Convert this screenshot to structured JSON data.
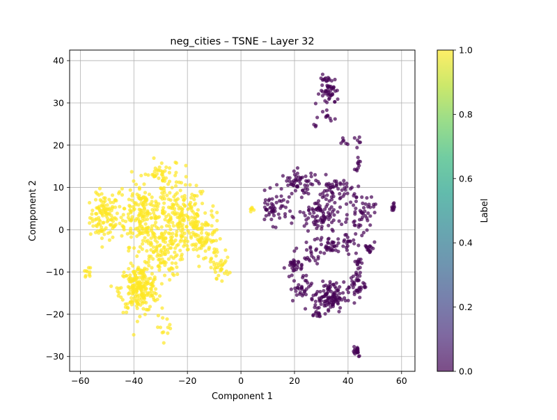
{
  "chart_data": {
    "type": "scatter",
    "title": "neg_cities – TSNE – Layer 32",
    "xlabel": "Component 1",
    "ylabel": "Component 2",
    "xlim": [
      -64,
      65
    ],
    "ylim": [
      -33.5,
      42.5
    ],
    "xticks": [
      -60,
      -40,
      -20,
      0,
      20,
      40,
      60
    ],
    "yticks": [
      -30,
      -20,
      -10,
      0,
      10,
      20,
      30,
      40
    ],
    "xtick_labels": [
      "−60",
      "−40",
      "−20",
      "0",
      "20",
      "40",
      "60"
    ],
    "ytick_labels": [
      "−30",
      "−20",
      "−10",
      "0",
      "10",
      "20",
      "30",
      "40"
    ],
    "grid": true,
    "point_alpha": 0.7,
    "colormap": "viridis",
    "series": [
      {
        "label_value": 1.0,
        "color": "#fde725",
        "clusters": [
          {
            "center": [
              -51,
              3
            ],
            "spread": [
              4.5,
              4.5
            ],
            "count": 110
          },
          {
            "center": [
              -37,
              4
            ],
            "spread": [
              8,
              6.5
            ],
            "count": 200
          },
          {
            "center": [
              -22,
              3
            ],
            "spread": [
              8,
              6.5
            ],
            "count": 170
          },
          {
            "center": [
              -38,
              -14
            ],
            "spread": [
              6,
              4.5
            ],
            "count": 220
          },
          {
            "center": [
              -30,
              -5
            ],
            "spread": [
              7,
              5
            ],
            "count": 120
          },
          {
            "center": [
              -14,
              -2
            ],
            "spread": [
              6,
              5
            ],
            "count": 100
          },
          {
            "center": [
              -8,
              -9
            ],
            "spread": [
              3,
              2
            ],
            "count": 30
          },
          {
            "center": [
              -57,
              -10
            ],
            "spread": [
              1.2,
              1
            ],
            "count": 10
          },
          {
            "center": [
              -30,
              13
            ],
            "spread": [
              6,
              3
            ],
            "count": 40
          },
          {
            "center": [
              -28,
              -23
            ],
            "spread": [
              3,
              2
            ],
            "count": 12
          },
          {
            "center": [
              4,
              4.5
            ],
            "spread": [
              0.8,
              0.8
            ],
            "count": 6
          }
        ]
      },
      {
        "label_value": 0.0,
        "color": "#440154",
        "clusters": [
          {
            "center": [
              33,
              33
            ],
            "spread": [
              3,
              3
            ],
            "count": 55
          },
          {
            "center": [
              33,
              26.5
            ],
            "spread": [
              2,
              0.6
            ],
            "count": 8
          },
          {
            "center": [
              28,
              24.5
            ],
            "spread": [
              0.6,
              0.5
            ],
            "count": 3
          },
          {
            "center": [
              38,
              21
            ],
            "spread": [
              1.2,
              1.2
            ],
            "count": 6
          },
          {
            "center": [
              43.5,
              21
            ],
            "spread": [
              1,
              1.2
            ],
            "count": 6
          },
          {
            "center": [
              44,
              15.5
            ],
            "spread": [
              1.2,
              1.2
            ],
            "count": 10
          },
          {
            "center": [
              22,
              11
            ],
            "spread": [
              6,
              2.5
            ],
            "count": 60
          },
          {
            "center": [
              35,
              9
            ],
            "spread": [
              5,
              3
            ],
            "count": 50
          },
          {
            "center": [
              12,
              5
            ],
            "spread": [
              4.5,
              3
            ],
            "count": 50
          },
          {
            "center": [
              30,
              3
            ],
            "spread": [
              7,
              4
            ],
            "count": 90
          },
          {
            "center": [
              45,
              4
            ],
            "spread": [
              4,
              4
            ],
            "count": 50
          },
          {
            "center": [
              57,
              5.5
            ],
            "spread": [
              0.7,
              1
            ],
            "count": 10
          },
          {
            "center": [
              33,
              -3.5
            ],
            "spread": [
              3,
              1.5
            ],
            "count": 30
          },
          {
            "center": [
              48,
              -4
            ],
            "spread": [
              1.5,
              1.5
            ],
            "count": 15
          },
          {
            "center": [
              40,
              -3
            ],
            "spread": [
              3,
              2
            ],
            "count": 20
          },
          {
            "center": [
              19,
              -9
            ],
            "spread": [
              2,
              2
            ],
            "count": 25
          },
          {
            "center": [
              22,
              -14
            ],
            "spread": [
              3,
              2.5
            ],
            "count": 30
          },
          {
            "center": [
              33,
              -16
            ],
            "spread": [
              4.5,
              3
            ],
            "count": 110
          },
          {
            "center": [
              43,
              -13
            ],
            "spread": [
              3,
              3
            ],
            "count": 40
          },
          {
            "center": [
              45,
              -8
            ],
            "spread": [
              1.5,
              1.5
            ],
            "count": 12
          },
          {
            "center": [
              28,
              -20
            ],
            "spread": [
              2,
              0.8
            ],
            "count": 10
          },
          {
            "center": [
              43,
              -28.5
            ],
            "spread": [
              1.5,
              1.3
            ],
            "count": 18
          },
          {
            "center": [
              26,
              -6
            ],
            "spread": [
              5,
              3
            ],
            "count": 25
          }
        ]
      }
    ]
  },
  "colorbar": {
    "label": "Label",
    "range": [
      0.0,
      1.0
    ],
    "ticks": [
      "0.0",
      "0.2",
      "0.4",
      "0.6",
      "0.8",
      "1.0"
    ],
    "stops": [
      "#440154",
      "#482878",
      "#3e4989",
      "#31688e",
      "#26828e",
      "#1f9e89",
      "#35b779",
      "#6ece58",
      "#b5de2b",
      "#fde725"
    ]
  }
}
